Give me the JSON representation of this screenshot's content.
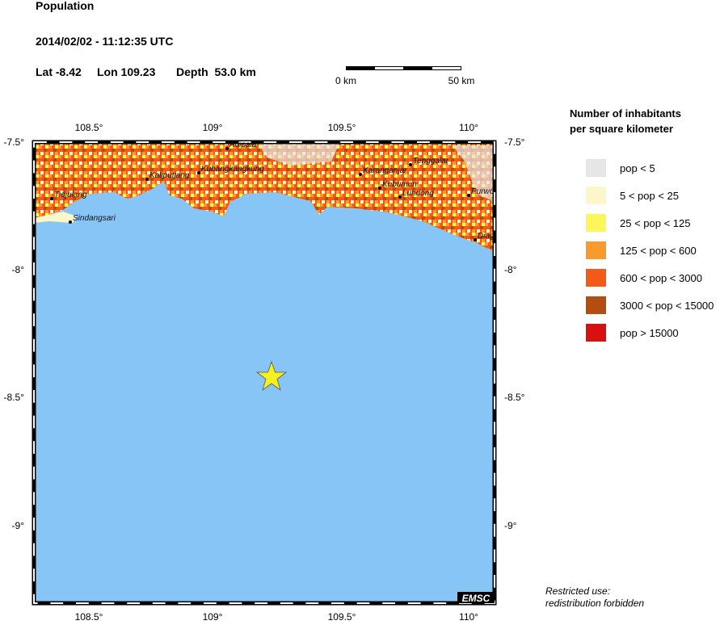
{
  "header": {
    "title": "Population",
    "datetime": "2014/02/02 - 11:12:35 UTC",
    "lat": "Lat -8.42",
    "lon": "Lon 109.23",
    "depth": "Depth  53.0 km"
  },
  "scale": {
    "start": "0 km",
    "end": "50 km"
  },
  "legend": {
    "title": [
      "Number of inhabitants",
      "per square kilometer"
    ],
    "items": [
      {
        "label": "pop < 5",
        "color": "#e6e6e6"
      },
      {
        "label": "5 < pop < 25",
        "color": "#fbf7c8"
      },
      {
        "label": "25 < pop < 125",
        "color": "#fbf75a"
      },
      {
        "label": "125 < pop < 600",
        "color": "#f99a2e"
      },
      {
        "label": "600 < pop < 3000",
        "color": "#f35a18"
      },
      {
        "label": "3000 < pop < 15000",
        "color": "#b44d12"
      },
      {
        "label": "pop > 15000",
        "color": "#d8100f"
      }
    ]
  },
  "map": {
    "x_labels": [
      "108.5°",
      "109°",
      "109.5°",
      "110°"
    ],
    "y_labels": [
      "-7.5°",
      "-8°",
      "-8.5°",
      "-9°"
    ],
    "cities": [
      "Adipala",
      "Kaliputjang",
      "Kubangkangkung",
      "Karanganjar",
      "Tenggalar",
      "Kebumen",
      "Lundong",
      "Purwo",
      "Diag",
      "Tidjulang",
      "Sindangsari"
    ],
    "credit": "EMSC"
  },
  "footer": {
    "notice": [
      "Restricted use:",
      "redistribution forbidden"
    ]
  }
}
